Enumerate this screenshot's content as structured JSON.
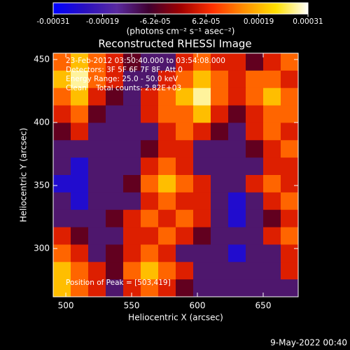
{
  "chart_data": {
    "type": "image",
    "title": "Reconstructed RHESSI Image",
    "x_label": "Heliocentric X (arcsec)",
    "y_label": "Heliocentric Y (arcsec)",
    "colorbar_label": "(photons cm⁻² s⁻¹ asec⁻²)",
    "annotations": [
      "23-Feb-2012 03:50:40.000 to 03:54:08.000",
      "Detectors: 3F 5F 6F 7F 8F, Att 0",
      "Energy Range: 25.0 - 50.0 keV",
      "Clean    Total counts: 2.82E+03"
    ],
    "peak_label": "Position of Peak = [503,419]",
    "footer": "9-May-2022 00:40",
    "xlim": [
      490.4,
      676.6
    ],
    "xticks": [
      500,
      550,
      600,
      650
    ],
    "ylim": [
      261.7,
      455
    ],
    "yticks": [
      300,
      350,
      400,
      450
    ],
    "zlim": [
      -0.00031,
      0.00031
    ],
    "zticks": [
      -0.00031,
      -0.00019,
      {
        "value": -6.2e-05,
        "label": "-6.2e-05"
      },
      {
        "value": 6.2e-05,
        "label": "6.2e-05"
      },
      0.00019,
      0.00031
    ],
    "colormap": [
      "#0000ff",
      "#2a10c0",
      "#5a2aa0",
      "#400030",
      "#a00000",
      "#ff3000",
      "#ff9000",
      "#ffe000",
      "#ffffff"
    ],
    "z": [
      [
        0.00012,
        0.0002,
        0.00012,
        5e-05,
        -5e-05,
        -0.00012,
        -0.00012,
        5e-05,
        0.00012,
        5e-05,
        5e-05,
        -5e-05,
        5e-05,
        0.00012
      ],
      [
        0.0002,
        0.00028,
        0.00012,
        5e-05,
        -0.00012,
        -0.00012,
        5e-05,
        0.00012,
        0.0002,
        0.00012,
        5e-05,
        0.00012,
        0.00012,
        5e-05
      ],
      [
        0.00012,
        0.0002,
        5e-05,
        -5e-05,
        -0.00012,
        5e-05,
        0.00012,
        0.0002,
        0.00028,
        0.00012,
        5e-05,
        0.00012,
        0.0002,
        0.00012
      ],
      [
        5e-05,
        0.00012,
        -5e-05,
        -0.00012,
        -0.00012,
        5e-05,
        0.00012,
        0.00012,
        0.0002,
        5e-05,
        -5e-05,
        5e-05,
        0.00012,
        0.00012
      ],
      [
        -5e-05,
        5e-05,
        -0.00012,
        -0.00012,
        -0.00012,
        -0.00012,
        5e-05,
        0.00012,
        5e-05,
        -5e-05,
        -0.00012,
        5e-05,
        0.00012,
        5e-05
      ],
      [
        -0.00012,
        -0.00012,
        -0.00012,
        -0.00012,
        -0.00012,
        -5e-05,
        5e-05,
        5e-05,
        -0.00012,
        -0.00012,
        -0.00012,
        -5e-05,
        5e-05,
        0.00012
      ],
      [
        -0.00012,
        -0.00025,
        -0.00012,
        -0.00012,
        -0.00012,
        5e-05,
        0.00012,
        5e-05,
        -0.00012,
        -0.00012,
        -0.00012,
        -0.00012,
        5e-05,
        5e-05
      ],
      [
        -0.00025,
        -0.00025,
        -0.00012,
        -0.00012,
        -5e-05,
        0.00012,
        0.0002,
        0.00012,
        5e-05,
        -0.00012,
        -0.00012,
        5e-05,
        0.00012,
        5e-05
      ],
      [
        -0.00012,
        -0.00025,
        -0.00012,
        -0.00012,
        -0.00012,
        5e-05,
        0.00012,
        5e-05,
        5e-05,
        -0.00012,
        -0.00025,
        -0.00012,
        5e-05,
        0.00012
      ],
      [
        -0.00012,
        -0.00012,
        -0.00012,
        -5e-05,
        5e-05,
        0.00012,
        5e-05,
        0.00012,
        5e-05,
        -0.00012,
        -0.00025,
        -0.00012,
        -5e-05,
        5e-05
      ],
      [
        5e-05,
        -5e-05,
        -0.00012,
        -0.00012,
        5e-05,
        5e-05,
        0.00012,
        5e-05,
        -5e-05,
        -0.00012,
        -0.00012,
        -0.00012,
        5e-05,
        0.00012
      ],
      [
        0.00012,
        5e-05,
        -0.00012,
        -5e-05,
        5e-05,
        0.00012,
        5e-05,
        -0.00012,
        -0.00012,
        -0.00012,
        -0.00025,
        -0.00012,
        -0.00012,
        5e-05
      ],
      [
        0.0002,
        0.00012,
        5e-05,
        -5e-05,
        0.00012,
        0.0002,
        0.00012,
        5e-05,
        -0.00012,
        -0.00012,
        -0.00012,
        -0.00012,
        -0.00012,
        5e-05
      ],
      [
        0.0002,
        0.00012,
        5e-05,
        -0.00012,
        5e-05,
        0.00012,
        5e-05,
        -5e-05,
        -0.00012,
        -0.00012,
        -0.00012,
        -0.00012,
        -0.00012,
        -0.00012
      ]
    ]
  }
}
